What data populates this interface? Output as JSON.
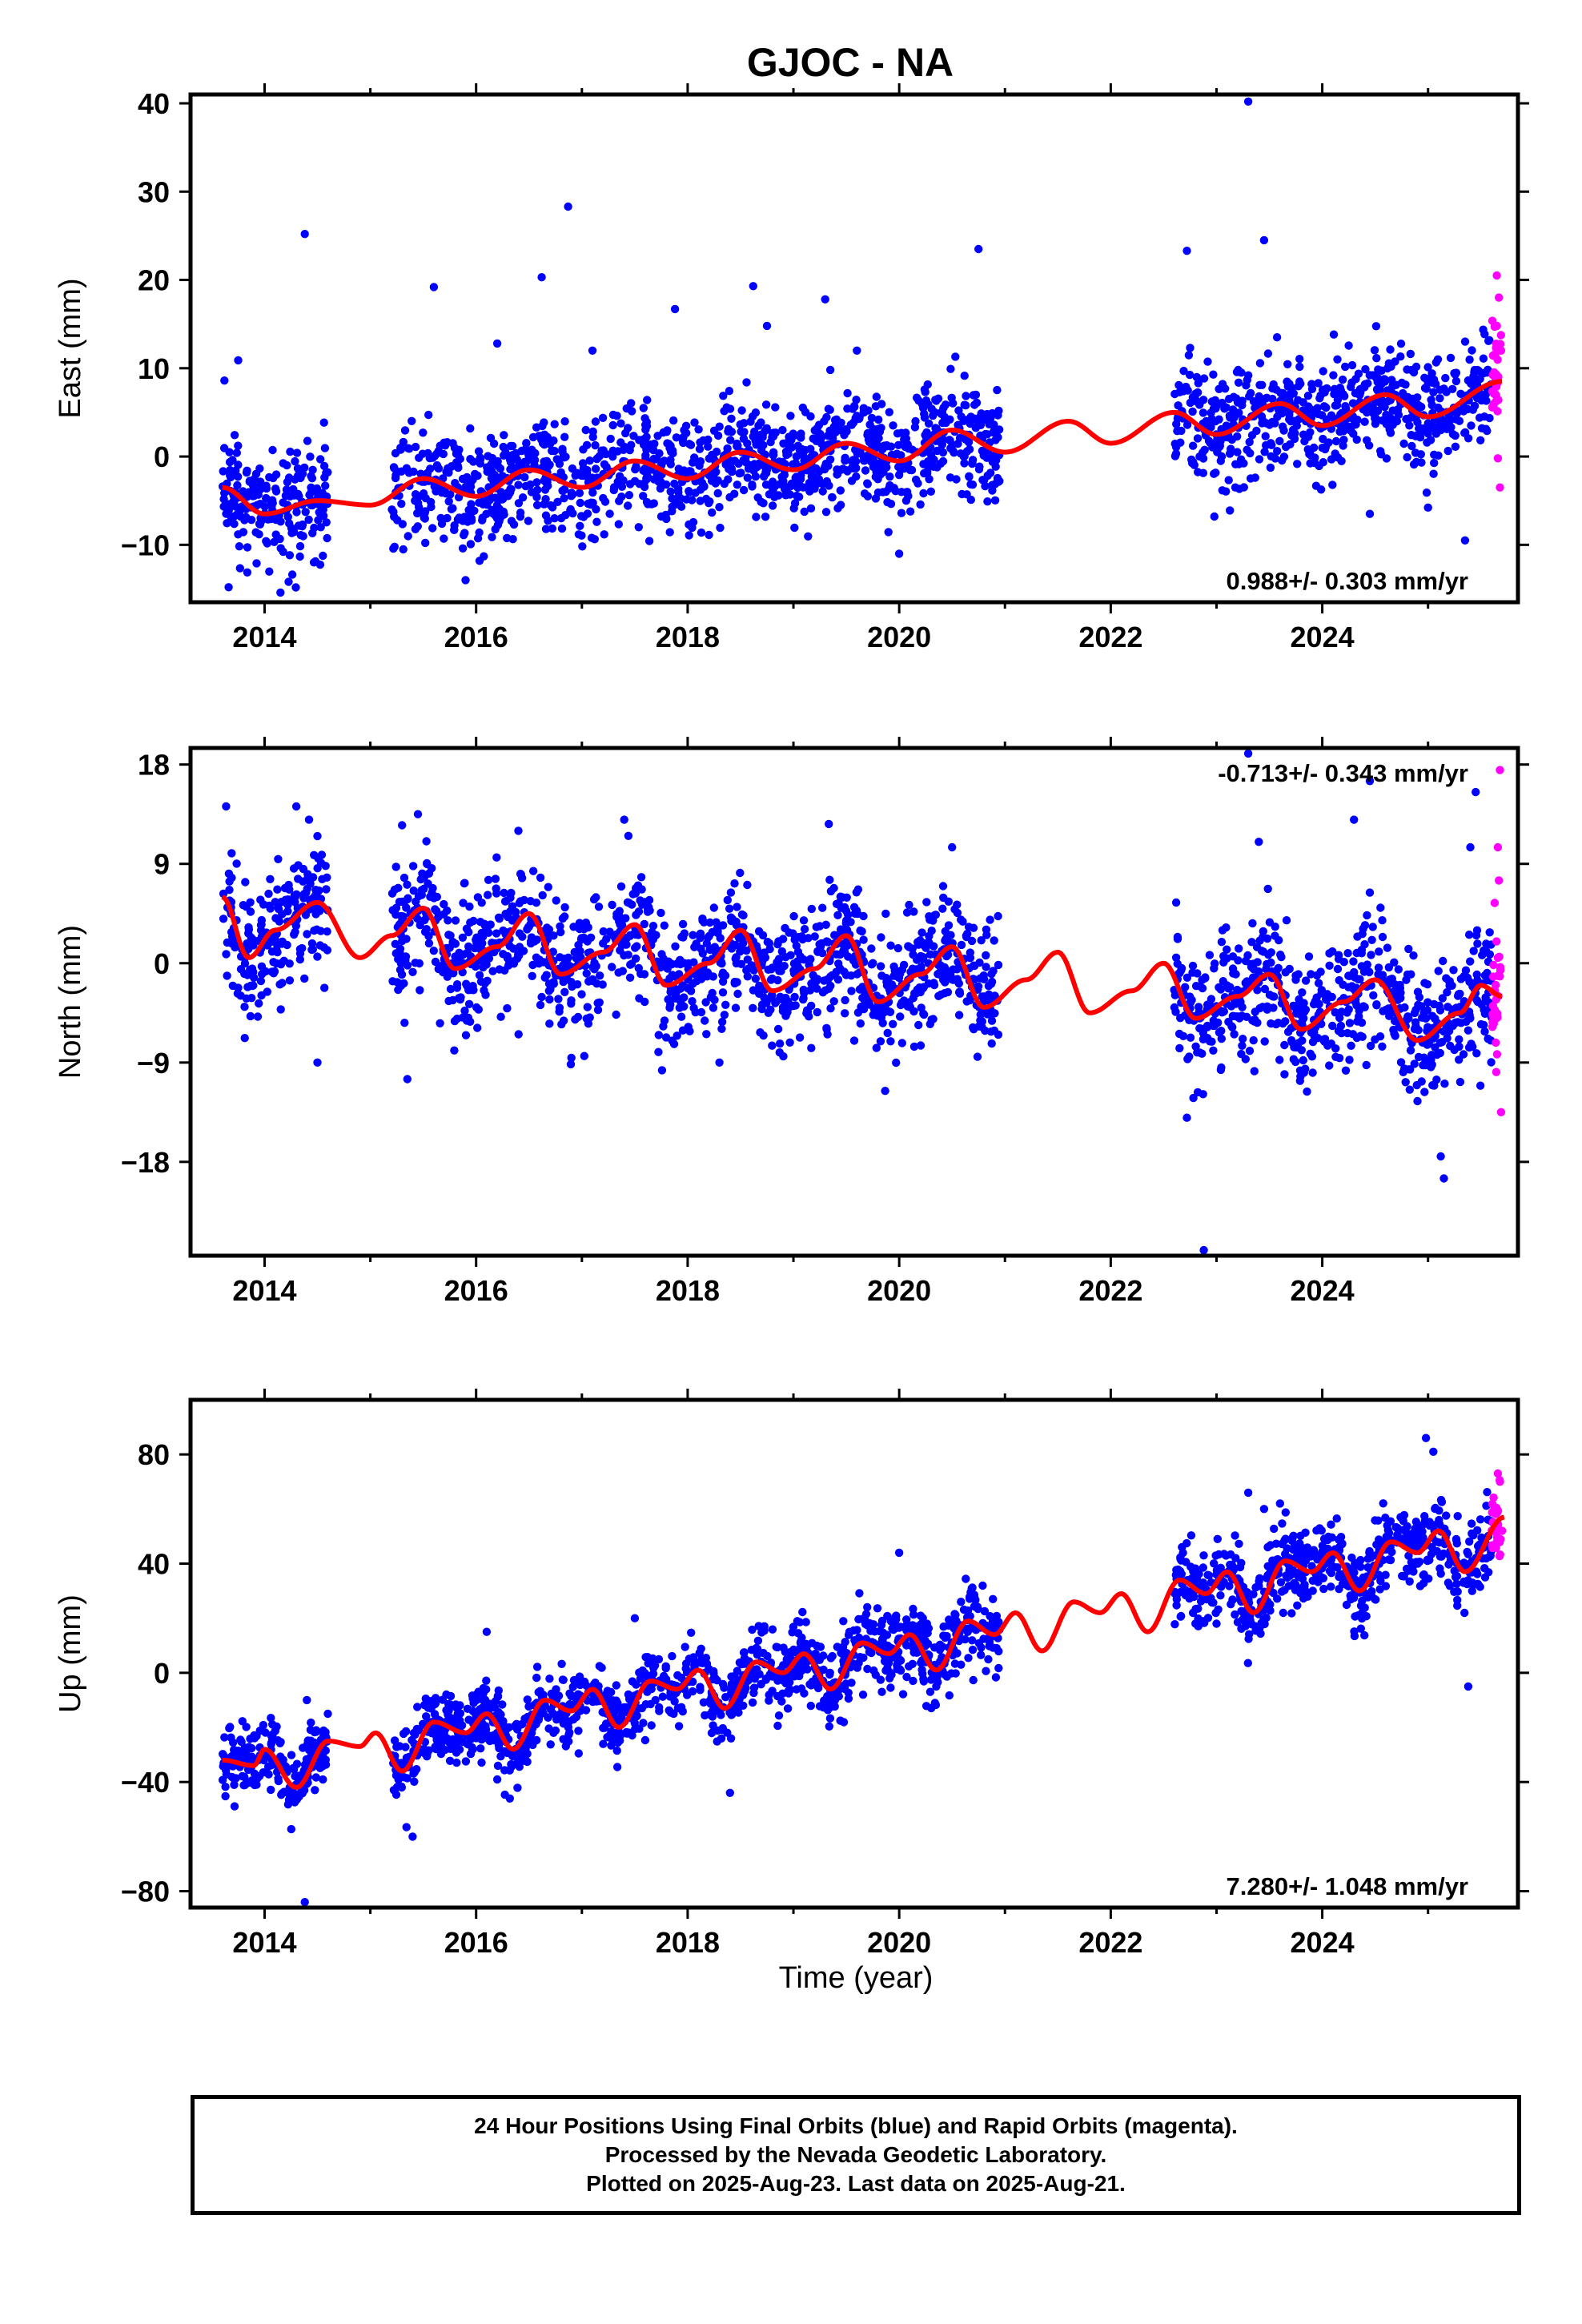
{
  "title": "GJOC - NA",
  "xlabel": "Time (year)",
  "colors": {
    "final": "#0000ff",
    "rapid": "#ff00ff",
    "model": "#ff0000",
    "frame": "#000000"
  },
  "footer": {
    "line1": "24 Hour Positions Using Final Orbits (blue) and Rapid Orbits (magenta).",
    "line2": "Processed by the Nevada Geodetic Laboratory.",
    "line3": "Plotted on 2025-Aug-23. Last data on 2025-Aug-21."
  },
  "chart_data": [
    {
      "type": "scatter",
      "component": "east",
      "ylabel": "East (mm)",
      "xlim": [
        2013.3,
        2025.85
      ],
      "ylim": [
        -16.5,
        41
      ],
      "xticks": [
        2014,
        2016,
        2018,
        2020,
        2022,
        2024
      ],
      "yticks": [
        -10,
        0,
        10,
        20,
        30,
        40
      ],
      "yticklabels": [
        "−10",
        "0",
        "10",
        "20",
        "30",
        "40"
      ],
      "rate_text": "0.988+/- 0.303 mm/yr",
      "rate_pos": "bottom-right",
      "rate": 0.988,
      "model_anchors": [
        [
          2013.6,
          -3.5
        ],
        [
          2014.0,
          -6.5
        ],
        [
          2014.5,
          -5
        ],
        [
          2015.0,
          -5.5
        ],
        [
          2015.5,
          -2.5
        ],
        [
          2016.0,
          -4.5
        ],
        [
          2016.5,
          -1.5
        ],
        [
          2017.0,
          -3.5
        ],
        [
          2017.5,
          -0.5
        ],
        [
          2018.0,
          -2.5
        ],
        [
          2018.5,
          0.5
        ],
        [
          2019.0,
          -1.5
        ],
        [
          2019.5,
          1.5
        ],
        [
          2020.0,
          -0.5
        ],
        [
          2020.5,
          3.0
        ],
        [
          2021.0,
          0.5
        ],
        [
          2021.6,
          4.0
        ],
        [
          2022.0,
          1.5
        ],
        [
          2022.6,
          5.0
        ],
        [
          2023.0,
          2.5
        ],
        [
          2023.6,
          6.0
        ],
        [
          2024.0,
          3.5
        ],
        [
          2024.6,
          7.0
        ],
        [
          2025.0,
          4.5
        ],
        [
          2025.7,
          8.5
        ]
      ],
      "segments": [
        [
          2013.6,
          2014.6
        ],
        [
          2015.2,
          2020.95
        ],
        [
          2022.6,
          2025.6
        ]
      ],
      "rapid_x": [
        2025.6,
        2025.75
      ],
      "scatter_sd": 3.2,
      "outliers": [
        [
          2013.62,
          8.6
        ],
        [
          2013.75,
          10.9
        ],
        [
          2013.66,
          -14.8
        ],
        [
          2014.15,
          -15.4
        ],
        [
          2014.38,
          25.2
        ],
        [
          2015.6,
          19.2
        ],
        [
          2015.9,
          -14.0
        ],
        [
          2016.2,
          12.8
        ],
        [
          2016.62,
          20.3
        ],
        [
          2016.87,
          28.3
        ],
        [
          2017.1,
          12.0
        ],
        [
          2017.88,
          16.7
        ],
        [
          2018.62,
          19.3
        ],
        [
          2018.75,
          14.8
        ],
        [
          2019.3,
          17.8
        ],
        [
          2019.6,
          12.0
        ],
        [
          2020.0,
          -11.0
        ],
        [
          2020.75,
          23.5
        ],
        [
          2022.72,
          23.3
        ],
        [
          2022.75,
          12.3
        ],
        [
          2023.3,
          40.2
        ],
        [
          2023.45,
          24.5
        ],
        [
          2022.98,
          -6.8
        ],
        [
          2024.45,
          -6.5
        ],
        [
          2025.35,
          -9.5
        ]
      ],
      "rapid_extra": [
        [
          2025.65,
          20.5
        ],
        [
          2025.67,
          18.0
        ],
        [
          2025.65,
          14.8
        ],
        [
          2025.66,
          -0.2
        ],
        [
          2025.68,
          -3.5
        ],
        [
          2025.69,
          12.0
        ]
      ]
    },
    {
      "type": "scatter",
      "component": "north",
      "ylabel": "North (mm)",
      "xlim": [
        2013.3,
        2025.85
      ],
      "ylim": [
        -26.5,
        19.5
      ],
      "xticks": [
        2014,
        2016,
        2018,
        2020,
        2022,
        2024
      ],
      "yticks": [
        -18,
        -9,
        0,
        9,
        18
      ],
      "yticklabels": [
        "−18",
        "−9",
        "0",
        "9",
        "18"
      ],
      "rate_text": "-0.713+/- 0.343 mm/yr",
      "rate_pos": "top-right",
      "rate": -0.713,
      "model_anchors": [
        [
          2013.6,
          6.0
        ],
        [
          2013.85,
          0.5
        ],
        [
          2014.1,
          3.0
        ],
        [
          2014.5,
          5.5
        ],
        [
          2014.9,
          0.5
        ],
        [
          2015.2,
          2.5
        ],
        [
          2015.5,
          5.0
        ],
        [
          2015.8,
          -0.5
        ],
        [
          2016.2,
          1.5
        ],
        [
          2016.5,
          4.5
        ],
        [
          2016.8,
          -1.0
        ],
        [
          2017.2,
          1.0
        ],
        [
          2017.5,
          3.5
        ],
        [
          2017.8,
          -2.0
        ],
        [
          2018.2,
          0.0
        ],
        [
          2018.5,
          3.0
        ],
        [
          2018.8,
          -2.5
        ],
        [
          2019.2,
          -0.5
        ],
        [
          2019.5,
          2.5
        ],
        [
          2019.8,
          -3.5
        ],
        [
          2020.2,
          -1.0
        ],
        [
          2020.5,
          1.5
        ],
        [
          2020.8,
          -4.0
        ],
        [
          2021.2,
          -1.5
        ],
        [
          2021.5,
          1.0
        ],
        [
          2021.8,
          -4.5
        ],
        [
          2022.2,
          -2.5
        ],
        [
          2022.5,
          0.0
        ],
        [
          2022.8,
          -5.0
        ],
        [
          2023.2,
          -3.0
        ],
        [
          2023.5,
          -1.0
        ],
        [
          2023.8,
          -6.0
        ],
        [
          2024.2,
          -3.5
        ],
        [
          2024.5,
          -1.5
        ],
        [
          2024.9,
          -7.0
        ],
        [
          2025.3,
          -4.5
        ],
        [
          2025.5,
          -2.0
        ],
        [
          2025.7,
          -3.0
        ]
      ],
      "segments": [
        [
          2013.6,
          2014.6
        ],
        [
          2015.2,
          2020.95
        ],
        [
          2022.6,
          2025.6
        ]
      ],
      "rapid_x": [
        2025.6,
        2025.75
      ],
      "scatter_sd": 3.0,
      "outliers": [
        [
          2014.3,
          14.2
        ],
        [
          2014.42,
          13.0
        ],
        [
          2015.3,
          12.5
        ],
        [
          2015.45,
          13.5
        ],
        [
          2016.4,
          12.0
        ],
        [
          2017.4,
          13.0
        ],
        [
          2020.5,
          10.5
        ],
        [
          2015.35,
          -10.5
        ],
        [
          2014.5,
          -9.0
        ],
        [
          2018.3,
          -9.0
        ],
        [
          2022.72,
          -14.0
        ],
        [
          2022.88,
          -26.0
        ],
        [
          2023.3,
          19.0
        ],
        [
          2023.4,
          11.0
        ],
        [
          2024.3,
          13.0
        ],
        [
          2024.45,
          16.5
        ],
        [
          2025.12,
          -17.5
        ],
        [
          2025.15,
          -19.5
        ],
        [
          2024.9,
          -12.5
        ],
        [
          2025.45,
          15.5
        ],
        [
          2025.4,
          10.5
        ]
      ],
      "rapid_extra": [
        [
          2025.68,
          17.5
        ],
        [
          2025.66,
          10.5
        ],
        [
          2025.67,
          7.5
        ],
        [
          2025.69,
          -13.5
        ],
        [
          2025.66,
          0.5
        ]
      ]
    },
    {
      "type": "scatter",
      "component": "up",
      "ylabel": "Up (mm)",
      "xlim": [
        2013.3,
        2025.85
      ],
      "ylim": [
        -86,
        100
      ],
      "xticks": [
        2014,
        2016,
        2018,
        2020,
        2022,
        2024
      ],
      "yticks": [
        -80,
        -40,
        0,
        40,
        80
      ],
      "yticklabels": [
        "−80",
        "−40",
        "0",
        "40",
        "80"
      ],
      "rate_text": "7.280+/- 1.048 mm/yr",
      "rate_pos": "bottom-right",
      "rate": 7.28,
      "model_anchors": [
        [
          2013.6,
          -32
        ],
        [
          2013.9,
          -34
        ],
        [
          2014.0,
          -28
        ],
        [
          2014.3,
          -42
        ],
        [
          2014.6,
          -25
        ],
        [
          2014.9,
          -27
        ],
        [
          2015.05,
          -22
        ],
        [
          2015.3,
          -36
        ],
        [
          2015.6,
          -18
        ],
        [
          2015.9,
          -22
        ],
        [
          2016.1,
          -15
        ],
        [
          2016.35,
          -28
        ],
        [
          2016.65,
          -10
        ],
        [
          2016.9,
          -14
        ],
        [
          2017.1,
          -6
        ],
        [
          2017.35,
          -20
        ],
        [
          2017.65,
          -3
        ],
        [
          2017.9,
          -6
        ],
        [
          2018.1,
          1
        ],
        [
          2018.35,
          -13
        ],
        [
          2018.65,
          4
        ],
        [
          2018.9,
          0
        ],
        [
          2019.1,
          7
        ],
        [
          2019.35,
          -6
        ],
        [
          2019.65,
          11
        ],
        [
          2019.9,
          7
        ],
        [
          2020.1,
          14
        ],
        [
          2020.35,
          1
        ],
        [
          2020.65,
          19
        ],
        [
          2020.9,
          14
        ],
        [
          2021.1,
          22
        ],
        [
          2021.35,
          8
        ],
        [
          2021.65,
          26
        ],
        [
          2021.9,
          22
        ],
        [
          2022.1,
          29
        ],
        [
          2022.35,
          15
        ],
        [
          2022.65,
          34
        ],
        [
          2022.9,
          29
        ],
        [
          2023.1,
          37
        ],
        [
          2023.35,
          22
        ],
        [
          2023.65,
          41
        ],
        [
          2023.9,
          37
        ],
        [
          2024.1,
          44
        ],
        [
          2024.35,
          30
        ],
        [
          2024.65,
          48
        ],
        [
          2024.9,
          44
        ],
        [
          2025.1,
          52
        ],
        [
          2025.35,
          37
        ],
        [
          2025.72,
          57
        ]
      ],
      "segments": [
        [
          2013.6,
          2014.6
        ],
        [
          2015.2,
          2020.95
        ],
        [
          2022.6,
          2025.6
        ]
      ],
      "rapid_x": [
        2025.6,
        2025.75
      ],
      "scatter_sd": 7.0,
      "outliers": [
        [
          2014.38,
          -84
        ],
        [
          2014.4,
          -10
        ],
        [
          2015.4,
          -60
        ],
        [
          2016.1,
          15
        ],
        [
          2017.5,
          20
        ],
        [
          2018.4,
          -44
        ],
        [
          2020.0,
          44
        ],
        [
          2024.98,
          86
        ],
        [
          2025.05,
          81
        ],
        [
          2025.38,
          -5
        ],
        [
          2023.3,
          66
        ],
        [
          2023.45,
          60
        ]
      ],
      "rapid_extra": [
        [
          2025.66,
          73
        ],
        [
          2025.68,
          70
        ],
        [
          2025.65,
          48
        ],
        [
          2025.7,
          52
        ]
      ]
    }
  ]
}
